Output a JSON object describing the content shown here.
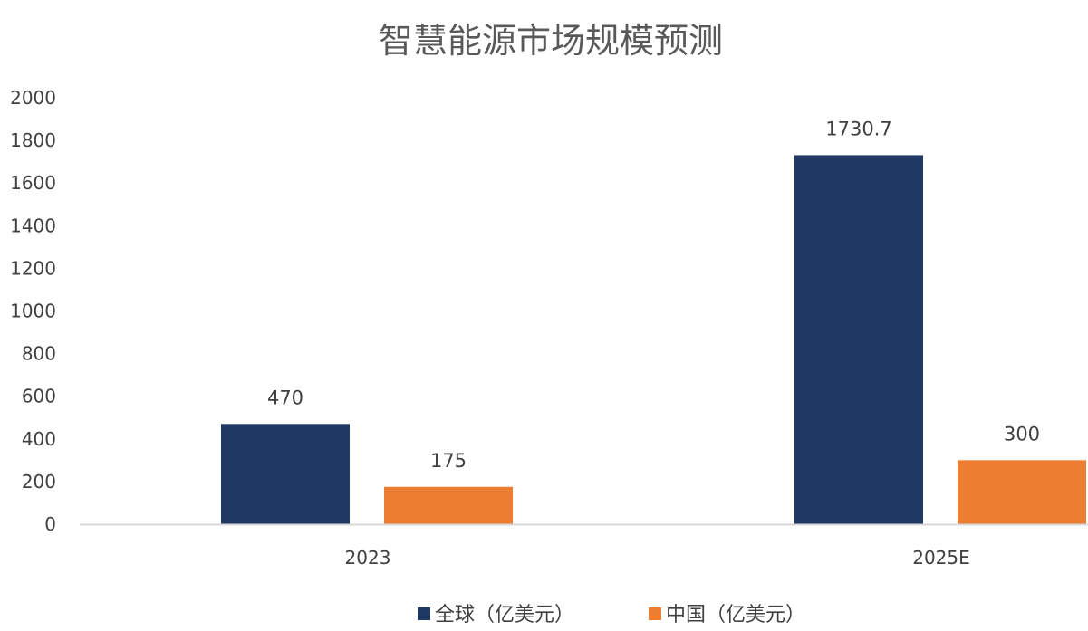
{
  "chart_data": {
    "type": "bar",
    "title": "智慧能源市场规模预测",
    "categories": [
      "2023",
      "2025E"
    ],
    "series": [
      {
        "name": "全球（亿美元）",
        "values": [
          470,
          1730.7
        ],
        "labels": [
          "470",
          "1730.7"
        ],
        "color": "#1F3864"
      },
      {
        "name": "中国（亿美元）",
        "values": [
          175,
          300
        ],
        "labels": [
          "175",
          "300"
        ],
        "color": "#ED7D31"
      }
    ],
    "ylim": [
      0,
      2000
    ],
    "yticks": [
      {
        "value": 0,
        "label": "0"
      },
      {
        "value": 200,
        "label": "200"
      },
      {
        "value": 400,
        "label": "400"
      },
      {
        "value": 600,
        "label": "600"
      },
      {
        "value": 800,
        "label": "800"
      },
      {
        "value": 1000,
        "label": "1000"
      },
      {
        "value": 1200,
        "label": "1200"
      },
      {
        "value": 1400,
        "label": "1400"
      },
      {
        "value": 1600,
        "label": "1600"
      },
      {
        "value": 1800,
        "label": "1800"
      },
      {
        "value": 2000,
        "label": "2000"
      }
    ],
    "grid": false,
    "legend": "bottom",
    "axis_color": "#D9D9D9"
  }
}
